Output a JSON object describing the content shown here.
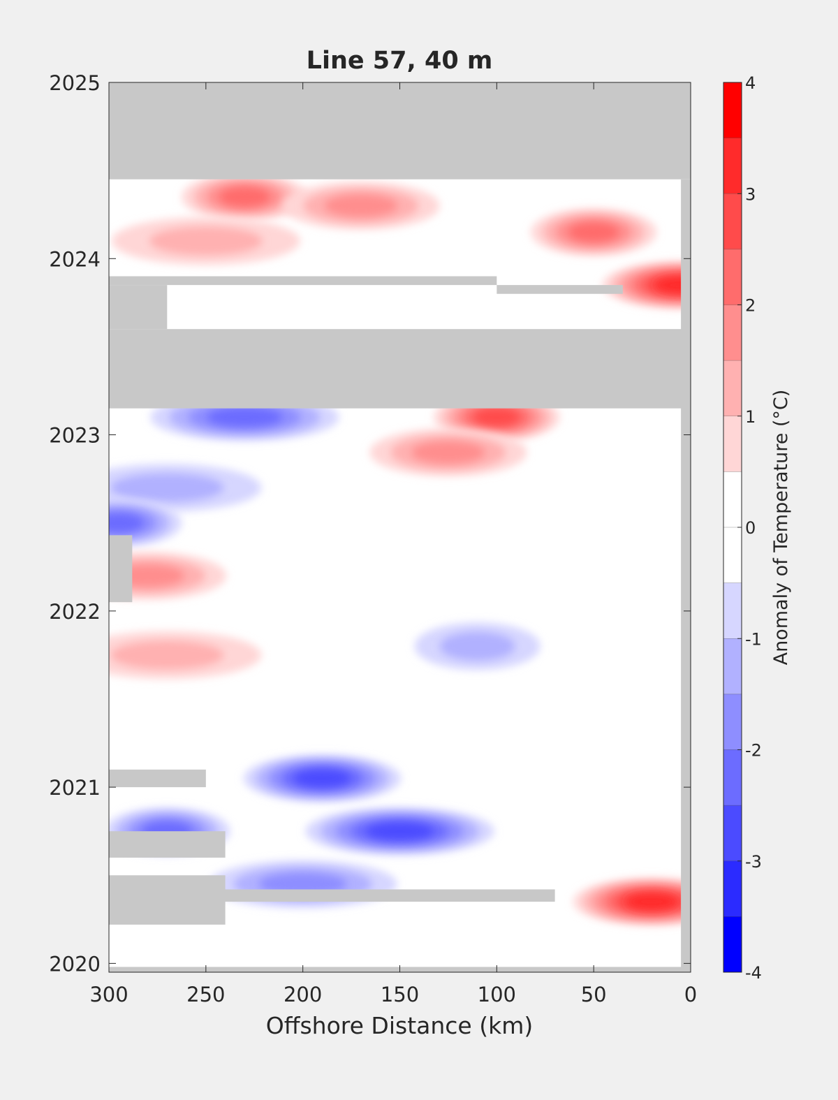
{
  "chart_data": {
    "type": "heatmap",
    "title": "Line 57, 40 m",
    "xlabel": "Offshore Distance (km)",
    "ylabel": "",
    "xlim": [
      300,
      0
    ],
    "ylim": [
      2019.95,
      2025
    ],
    "x_ticks": [
      300,
      250,
      200,
      150,
      100,
      50,
      0
    ],
    "y_ticks": [
      2020,
      2021,
      2022,
      2023,
      2024,
      2025
    ],
    "grid": false,
    "colorbar": {
      "label": "Anomaly of Temperature (°C)",
      "range": [
        -4,
        4
      ],
      "ticks": [
        4,
        3,
        2,
        1,
        0,
        -1,
        -2,
        -3,
        -4
      ],
      "levels": [
        {
          "from": 3.5,
          "to": 4.0,
          "color": "#ff0000"
        },
        {
          "from": 3.0,
          "to": 3.5,
          "color": "#ff2b2b"
        },
        {
          "from": 2.5,
          "to": 3.0,
          "color": "#ff4b4b"
        },
        {
          "from": 2.0,
          "to": 2.5,
          "color": "#ff6c6c"
        },
        {
          "from": 1.5,
          "to": 2.0,
          "color": "#ff8e8e"
        },
        {
          "from": 1.0,
          "to": 1.5,
          "color": "#ffb1b1"
        },
        {
          "from": 0.5,
          "to": 1.0,
          "color": "#ffd6d6"
        },
        {
          "from": 0.0,
          "to": 0.5,
          "color": "#ffffff"
        },
        {
          "from": -0.5,
          "to": 0.0,
          "color": "#ffffff"
        },
        {
          "from": -1.0,
          "to": -0.5,
          "color": "#d6d6ff"
        },
        {
          "from": -1.5,
          "to": -1.0,
          "color": "#b1b1ff"
        },
        {
          "from": -2.0,
          "to": -1.5,
          "color": "#8e8eff"
        },
        {
          "from": -2.5,
          "to": -2.0,
          "color": "#6c6cff"
        },
        {
          "from": -3.0,
          "to": -2.5,
          "color": "#4b4bff"
        },
        {
          "from": -3.5,
          "to": -3.0,
          "color": "#2b2bff"
        },
        {
          "from": -4.0,
          "to": -3.5,
          "color": "#0000ff"
        }
      ]
    },
    "missing_data_color": "#c8c8c8",
    "missing_data_regions": [
      {
        "x": [
          300,
          0
        ],
        "y": [
          2024.45,
          2025.0
        ]
      },
      {
        "x": [
          300,
          100
        ],
        "y": [
          2023.85,
          2023.9
        ]
      },
      {
        "x": [
          100,
          35
        ],
        "y": [
          2023.8,
          2023.85
        ]
      },
      {
        "x": [
          300,
          270
        ],
        "y": [
          2023.6,
          2023.85
        ]
      },
      {
        "x": [
          300,
          0
        ],
        "y": [
          2023.15,
          2023.6
        ]
      },
      {
        "x": [
          300,
          288
        ],
        "y": [
          2022.05,
          2022.43
        ]
      },
      {
        "x": [
          300,
          250
        ],
        "y": [
          2021.0,
          2021.1
        ]
      },
      {
        "x": [
          300,
          240
        ],
        "y": [
          2020.6,
          2020.75
        ]
      },
      {
        "x": [
          300,
          70
        ],
        "y": [
          2020.35,
          2020.42
        ]
      },
      {
        "x": [
          300,
          240
        ],
        "y": [
          2020.22,
          2020.5
        ]
      },
      {
        "x": [
          5,
          0
        ],
        "y": [
          2019.95,
          2024.45
        ]
      },
      {
        "x": [
          300,
          0
        ],
        "y": [
          2019.95,
          2019.98
        ]
      }
    ],
    "anomaly_features": [
      {
        "x": 230,
        "y": 2024.35,
        "value": 2.5
      },
      {
        "x": 170,
        "y": 2024.3,
        "value": 2.3
      },
      {
        "x": 250,
        "y": 2024.1,
        "value": 1.9
      },
      {
        "x": 50,
        "y": 2024.15,
        "value": 2.5
      },
      {
        "x": 5,
        "y": 2023.85,
        "value": 3.5
      },
      {
        "x": 230,
        "y": 2023.1,
        "value": -2.8
      },
      {
        "x": 100,
        "y": 2023.1,
        "value": 3.3
      },
      {
        "x": 125,
        "y": 2022.9,
        "value": 2.2
      },
      {
        "x": 270,
        "y": 2022.7,
        "value": -1.6
      },
      {
        "x": 295,
        "y": 2022.5,
        "value": -2.8
      },
      {
        "x": 280,
        "y": 2022.2,
        "value": 2.2
      },
      {
        "x": 270,
        "y": 2021.75,
        "value": 1.5
      },
      {
        "x": 110,
        "y": 2021.8,
        "value": -1.8
      },
      {
        "x": 190,
        "y": 2021.05,
        "value": -3.3
      },
      {
        "x": 150,
        "y": 2020.75,
        "value": -3.2
      },
      {
        "x": 270,
        "y": 2020.75,
        "value": -2.7
      },
      {
        "x": 20,
        "y": 2020.35,
        "value": 3.6
      },
      {
        "x": 200,
        "y": 2020.45,
        "value": -2.0
      }
    ]
  }
}
